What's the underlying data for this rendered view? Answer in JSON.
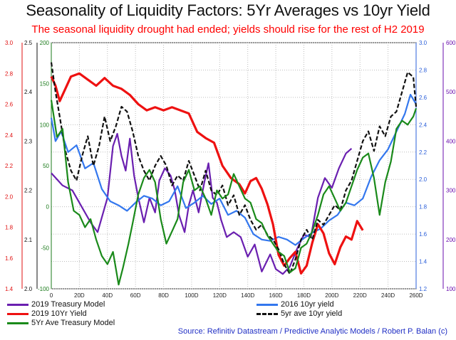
{
  "chart_data": {
    "type": "line",
    "title": "Seasonality of Liquidity Factors: 5Yr Averages vs 10yr Yield",
    "subtitle": "The seasonal liquidity drought had ended; yields should rise for the rest of H2 2019",
    "source": "Source: Refinitiv Datastream / Predictive Analytic Models / Robert P. Balan (c)",
    "x_axis": {
      "range": [
        0,
        260
      ],
      "ticks": [
        "0",
        "20D",
        "40D",
        "60D",
        "80D",
        "100D",
        "120D",
        "140D",
        "160D",
        "180D",
        "200D",
        "220D",
        "240D",
        "260D"
      ]
    },
    "y_axes": {
      "left_red": {
        "range": [
          1.4,
          3.0
        ],
        "color": "#e01010",
        "ticks": [
          "1.4",
          "1.6",
          "1.8",
          "2.0",
          "2.2",
          "2.4",
          "2.6",
          "2.8",
          "3.0"
        ]
      },
      "left_black": {
        "range": [
          2.0,
          2.5
        ],
        "color": "#111111",
        "ticks": [
          "2.0",
          "2.1",
          "2.2",
          "2.3",
          "2.4",
          "2.5"
        ]
      },
      "left_green": {
        "range": [
          -100,
          200
        ],
        "color": "#1a7a1a",
        "ticks": [
          "-100",
          "-50",
          "0",
          "50",
          "100",
          "150",
          "200"
        ]
      },
      "right_blue": {
        "range": [
          1.2,
          3.0
        ],
        "color": "#2b5fd9",
        "ticks": [
          "1.2",
          "1.4",
          "1.6",
          "1.8",
          "2.0",
          "2.2",
          "2.4",
          "2.6",
          "2.8",
          "3.0"
        ]
      },
      "right_purple": {
        "range": [
          100,
          600
        ],
        "color": "#6a0dad",
        "ticks": [
          "100",
          "200",
          "300",
          "400",
          "500",
          "600"
        ]
      }
    },
    "grid": true,
    "legend_position": "bottom",
    "series": [
      {
        "name": "2019 Treasury Model",
        "color": "#6a1fb0",
        "dash": false,
        "axis": "right_purple",
        "points": [
          [
            0,
            335
          ],
          [
            8,
            310
          ],
          [
            15,
            300
          ],
          [
            22,
            265
          ],
          [
            28,
            235
          ],
          [
            33,
            215
          ],
          [
            36,
            245
          ],
          [
            40,
            285
          ],
          [
            44,
            390
          ],
          [
            47,
            415
          ],
          [
            50,
            370
          ],
          [
            53,
            340
          ],
          [
            56,
            405
          ],
          [
            59,
            330
          ],
          [
            62,
            285
          ],
          [
            66,
            235
          ],
          [
            70,
            285
          ],
          [
            74,
            255
          ],
          [
            77,
            320
          ],
          [
            81,
            345
          ],
          [
            85,
            330
          ],
          [
            88,
            300
          ],
          [
            91,
            250
          ],
          [
            95,
            215
          ],
          [
            98,
            270
          ],
          [
            101,
            300
          ],
          [
            105,
            255
          ],
          [
            109,
            315
          ],
          [
            112,
            355
          ],
          [
            115,
            285
          ],
          [
            118,
            275
          ],
          [
            121,
            240
          ],
          [
            125,
            205
          ],
          [
            130,
            215
          ],
          [
            135,
            205
          ],
          [
            140,
            165
          ],
          [
            145,
            190
          ],
          [
            150,
            135
          ],
          [
            156,
            170
          ],
          [
            160,
            140
          ],
          [
            165,
            130
          ],
          [
            170,
            145
          ],
          [
            175,
            180
          ],
          [
            180,
            210
          ],
          [
            185,
            205
          ],
          [
            190,
            285
          ],
          [
            195,
            325
          ],
          [
            200,
            305
          ],
          [
            205,
            345
          ],
          [
            210,
            375
          ],
          [
            214,
            385
          ]
        ]
      },
      {
        "name": "2016 10yr yield",
        "color": "#3377ee",
        "dash": false,
        "axis": "right_blue",
        "points": [
          [
            0,
            2.45
          ],
          [
            3,
            2.28
          ],
          [
            7,
            2.35
          ],
          [
            12,
            2.2
          ],
          [
            18,
            2.25
          ],
          [
            24,
            2.08
          ],
          [
            30,
            2.12
          ],
          [
            36,
            1.93
          ],
          [
            42,
            1.84
          ],
          [
            48,
            1.81
          ],
          [
            54,
            1.77
          ],
          [
            60,
            1.83
          ],
          [
            66,
            1.88
          ],
          [
            72,
            1.86
          ],
          [
            78,
            1.81
          ],
          [
            84,
            1.84
          ],
          [
            90,
            1.95
          ],
          [
            96,
            1.79
          ],
          [
            102,
            1.83
          ],
          [
            108,
            1.88
          ],
          [
            114,
            1.82
          ],
          [
            120,
            1.86
          ],
          [
            126,
            1.74
          ],
          [
            132,
            1.77
          ],
          [
            138,
            1.72
          ],
          [
            144,
            1.6
          ],
          [
            150,
            1.56
          ],
          [
            156,
            1.55
          ],
          [
            162,
            1.58
          ],
          [
            168,
            1.56
          ],
          [
            174,
            1.52
          ],
          [
            180,
            1.57
          ],
          [
            186,
            1.61
          ],
          [
            192,
            1.64
          ],
          [
            198,
            1.7
          ],
          [
            204,
            1.74
          ],
          [
            210,
            1.83
          ],
          [
            216,
            1.81
          ],
          [
            222,
            1.86
          ],
          [
            228,
            2.02
          ],
          [
            234,
            2.14
          ],
          [
            240,
            2.22
          ],
          [
            246,
            2.35
          ],
          [
            252,
            2.48
          ],
          [
            256,
            2.62
          ],
          [
            260,
            2.55
          ]
        ]
      },
      {
        "name": "2019 10Yr Yield",
        "color": "#ee1111",
        "dash": false,
        "axis": "left_red",
        "points": [
          [
            0,
            2.78
          ],
          [
            3,
            2.72
          ],
          [
            6,
            2.62
          ],
          [
            10,
            2.7
          ],
          [
            14,
            2.78
          ],
          [
            20,
            2.8
          ],
          [
            26,
            2.76
          ],
          [
            32,
            2.72
          ],
          [
            38,
            2.77
          ],
          [
            44,
            2.72
          ],
          [
            50,
            2.7
          ],
          [
            56,
            2.66
          ],
          [
            62,
            2.6
          ],
          [
            68,
            2.56
          ],
          [
            74,
            2.58
          ],
          [
            80,
            2.56
          ],
          [
            86,
            2.58
          ],
          [
            92,
            2.56
          ],
          [
            98,
            2.54
          ],
          [
            104,
            2.42
          ],
          [
            110,
            2.38
          ],
          [
            116,
            2.35
          ],
          [
            122,
            2.2
          ],
          [
            128,
            2.12
          ],
          [
            134,
            2.08
          ],
          [
            138,
            2.02
          ],
          [
            142,
            2.1
          ],
          [
            146,
            2.12
          ],
          [
            150,
            2.05
          ],
          [
            154,
            1.95
          ],
          [
            158,
            1.82
          ],
          [
            162,
            1.62
          ],
          [
            166,
            1.55
          ],
          [
            170,
            1.6
          ],
          [
            174,
            1.64
          ],
          [
            178,
            1.5
          ],
          [
            182,
            1.55
          ],
          [
            186,
            1.7
          ],
          [
            190,
            1.82
          ],
          [
            194,
            1.76
          ],
          [
            198,
            1.63
          ],
          [
            202,
            1.56
          ],
          [
            206,
            1.67
          ],
          [
            210,
            1.74
          ],
          [
            214,
            1.72
          ],
          [
            218,
            1.84
          ],
          [
            222,
            1.78
          ]
        ]
      },
      {
        "name": "5yr ave 10yr yield",
        "color": "#111111",
        "dash": true,
        "axis": "left_black",
        "points": [
          [
            0,
            2.46
          ],
          [
            3,
            2.4
          ],
          [
            6,
            2.35
          ],
          [
            10,
            2.28
          ],
          [
            14,
            2.24
          ],
          [
            18,
            2.22
          ],
          [
            22,
            2.27
          ],
          [
            26,
            2.31
          ],
          [
            30,
            2.25
          ],
          [
            34,
            2.29
          ],
          [
            38,
            2.35
          ],
          [
            42,
            2.3
          ],
          [
            46,
            2.33
          ],
          [
            50,
            2.37
          ],
          [
            54,
            2.36
          ],
          [
            58,
            2.32
          ],
          [
            62,
            2.27
          ],
          [
            66,
            2.24
          ],
          [
            70,
            2.22
          ],
          [
            74,
            2.25
          ],
          [
            78,
            2.27
          ],
          [
            82,
            2.25
          ],
          [
            86,
            2.21
          ],
          [
            90,
            2.23
          ],
          [
            94,
            2.22
          ],
          [
            98,
            2.26
          ],
          [
            102,
            2.23
          ],
          [
            106,
            2.2
          ],
          [
            110,
            2.24
          ],
          [
            114,
            2.2
          ],
          [
            118,
            2.19
          ],
          [
            122,
            2.21
          ],
          [
            126,
            2.17
          ],
          [
            130,
            2.19
          ],
          [
            134,
            2.15
          ],
          [
            138,
            2.17
          ],
          [
            142,
            2.14
          ],
          [
            146,
            2.12
          ],
          [
            150,
            2.13
          ],
          [
            154,
            2.11
          ],
          [
            158,
            2.1
          ],
          [
            162,
            2.08
          ],
          [
            166,
            2.05
          ],
          [
            170,
            2.03
          ],
          [
            174,
            2.06
          ],
          [
            178,
            2.1
          ],
          [
            182,
            2.12
          ],
          [
            186,
            2.1
          ],
          [
            190,
            2.14
          ],
          [
            194,
            2.13
          ],
          [
            198,
            2.15
          ],
          [
            202,
            2.17
          ],
          [
            206,
            2.16
          ],
          [
            210,
            2.2
          ],
          [
            214,
            2.22
          ],
          [
            218,
            2.26
          ],
          [
            222,
            2.3
          ],
          [
            226,
            2.32
          ],
          [
            230,
            2.28
          ],
          [
            234,
            2.33
          ],
          [
            238,
            2.31
          ],
          [
            242,
            2.35
          ],
          [
            246,
            2.36
          ],
          [
            250,
            2.4
          ],
          [
            254,
            2.44
          ],
          [
            258,
            2.43
          ],
          [
            260,
            2.37
          ]
        ]
      },
      {
        "name": "5Yr Ave Treasury Model",
        "color": "#1a8a1a",
        "dash": false,
        "axis": "left_green",
        "points": [
          [
            0,
            130
          ],
          [
            4,
            85
          ],
          [
            8,
            95
          ],
          [
            12,
            30
          ],
          [
            16,
            -5
          ],
          [
            20,
            -10
          ],
          [
            24,
            -25
          ],
          [
            28,
            -15
          ],
          [
            32,
            -40
          ],
          [
            36,
            -60
          ],
          [
            40,
            -70
          ],
          [
            44,
            -55
          ],
          [
            48,
            -95
          ],
          [
            51,
            -75
          ],
          [
            55,
            -45
          ],
          [
            58,
            -20
          ],
          [
            62,
            15
          ],
          [
            66,
            35
          ],
          [
            70,
            45
          ],
          [
            74,
            30
          ],
          [
            78,
            -15
          ],
          [
            82,
            -45
          ],
          [
            86,
            -30
          ],
          [
            90,
            -15
          ],
          [
            94,
            30
          ],
          [
            98,
            45
          ],
          [
            102,
            20
          ],
          [
            106,
            25
          ],
          [
            110,
            10
          ],
          [
            114,
            -10
          ],
          [
            118,
            20
          ],
          [
            122,
            10
          ],
          [
            126,
            15
          ],
          [
            130,
            40
          ],
          [
            134,
            25
          ],
          [
            138,
            10
          ],
          [
            142,
            5
          ],
          [
            146,
            -15
          ],
          [
            150,
            -20
          ],
          [
            154,
            -35
          ],
          [
            158,
            -45
          ],
          [
            162,
            -55
          ],
          [
            166,
            -60
          ],
          [
            170,
            -80
          ],
          [
            174,
            -75
          ],
          [
            178,
            -50
          ],
          [
            182,
            -45
          ],
          [
            186,
            -30
          ],
          [
            190,
            -10
          ],
          [
            194,
            15
          ],
          [
            198,
            25
          ],
          [
            202,
            10
          ],
          [
            206,
            -5
          ],
          [
            210,
            5
          ],
          [
            214,
            25
          ],
          [
            218,
            45
          ],
          [
            222,
            60
          ],
          [
            226,
            65
          ],
          [
            230,
            35
          ],
          [
            234,
            -10
          ],
          [
            238,
            30
          ],
          [
            242,
            55
          ],
          [
            246,
            95
          ],
          [
            250,
            105
          ],
          [
            254,
            100
          ],
          [
            258,
            110
          ],
          [
            260,
            120
          ]
        ]
      }
    ]
  }
}
